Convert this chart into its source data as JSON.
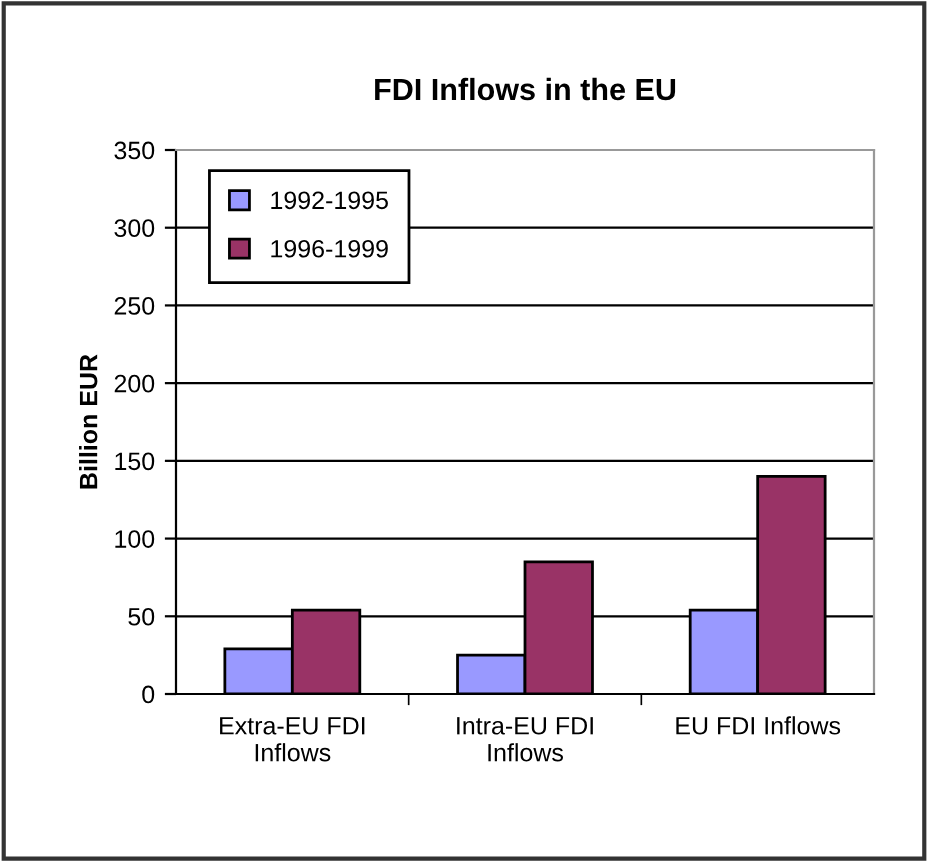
{
  "chart_data": {
    "type": "bar",
    "title": "FDI Inflows in the EU",
    "ylabel": "Billion EUR",
    "categories": [
      "Extra-EU FDI\nInflows",
      "Intra-EU FDI\nInflows",
      "EU FDI Inflows"
    ],
    "series": [
      {
        "name": "1992-1995",
        "color": "#9999ff",
        "values": [
          29,
          25,
          54
        ]
      },
      {
        "name": "1996-1999",
        "color": "#993366",
        "values": [
          54,
          85,
          140
        ]
      }
    ],
    "ylim": [
      0,
      350
    ],
    "yticks": [
      0,
      50,
      100,
      150,
      200,
      250,
      300,
      350
    ],
    "grid": "y",
    "legend": "top left"
  }
}
